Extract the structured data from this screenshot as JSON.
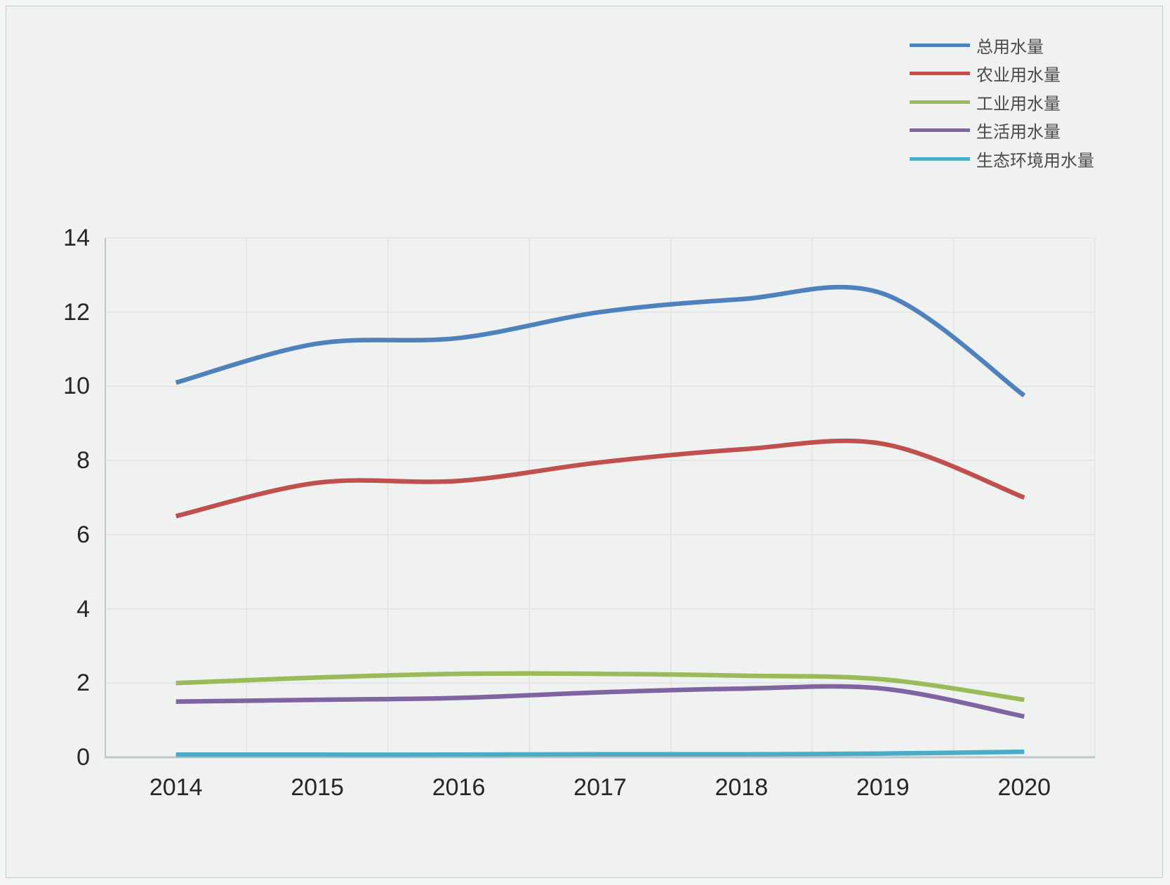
{
  "chart_data": {
    "type": "line",
    "title": "",
    "xlabel": "",
    "ylabel": "",
    "categories": [
      "2014",
      "2015",
      "2016",
      "2017",
      "2018",
      "2019",
      "2020"
    ],
    "series": [
      {
        "name": "总用水量",
        "color": "#4F81BD",
        "values": [
          10.1,
          11.15,
          11.3,
          12.0,
          12.35,
          12.5,
          9.75
        ]
      },
      {
        "name": "农业用水量",
        "color": "#C0504D",
        "values": [
          6.5,
          7.4,
          7.45,
          7.95,
          8.3,
          8.45,
          7.0
        ]
      },
      {
        "name": "工业用水量",
        "color": "#9BBB59",
        "values": [
          2.0,
          2.15,
          2.25,
          2.25,
          2.2,
          2.1,
          1.55
        ]
      },
      {
        "name": "生活用水量",
        "color": "#8064A2",
        "values": [
          1.5,
          1.55,
          1.6,
          1.75,
          1.85,
          1.85,
          1.1
        ]
      },
      {
        "name": "生态环境用水量",
        "color": "#4BACC6",
        "values": [
          0.07,
          0.07,
          0.07,
          0.08,
          0.08,
          0.1,
          0.15
        ]
      }
    ],
    "ylim": [
      0,
      14
    ],
    "ytick_step": 2,
    "yticks": [
      "0",
      "2",
      "4",
      "6",
      "8",
      "10",
      "12",
      "14"
    ],
    "grid": true,
    "smooth": true,
    "legend_position": "top-right"
  },
  "colors": {
    "canvas_bg": "#f0f1f1",
    "frame_border": "#c7cbcc",
    "gridline": "#e2e3e3",
    "axis_line": "#c2c6c7",
    "tick_text": "#262626",
    "legend_text": "#4a4a4a"
  }
}
